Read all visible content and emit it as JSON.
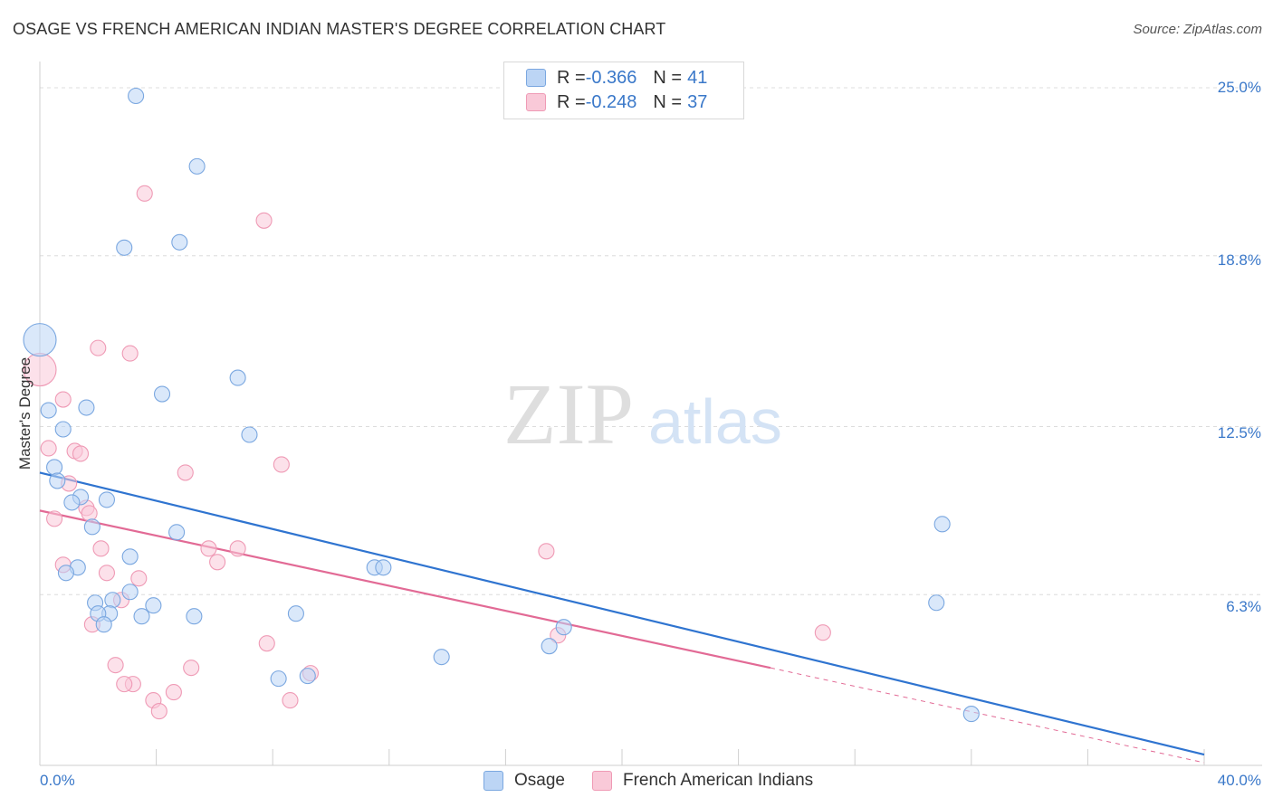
{
  "title": "OSAGE VS FRENCH AMERICAN INDIAN MASTER'S DEGREE CORRELATION CHART",
  "source": "Source: ZipAtlas.com",
  "watermark": {
    "zip": "ZIP",
    "atlas": "atlas"
  },
  "legend": {
    "osage": {
      "r_label": "R = ",
      "r_value": "-0.366",
      "n_label": "N = ",
      "n_value": "41"
    },
    "french": {
      "r_label": "R = ",
      "r_value": "-0.248",
      "n_label": "N = ",
      "n_value": "37"
    }
  },
  "chart_data": {
    "type": "scatter",
    "ylabel": "Master's Degree",
    "xlim": [
      0,
      40
    ],
    "ylim": [
      0,
      25
    ],
    "x_tick_labels": {
      "min": "0.0%",
      "max": "40.0%"
    },
    "y_tick_labels": [
      "25.0%",
      "18.8%",
      "12.5%",
      "6.3%"
    ],
    "y_tick_values": [
      25.0,
      18.8,
      12.5,
      6.3
    ],
    "colors": {
      "osage_fill": "#bcd5f5",
      "osage_stroke": "#7aa7e0",
      "osage_line": "#2f74d0",
      "french_fill": "#f9c9d8",
      "french_stroke": "#ef9ab5",
      "french_line": "#e26a95"
    },
    "series": [
      {
        "name": "Osage",
        "trend": {
          "x0": 0,
          "y0": 10.8,
          "x1": 40,
          "y1": 0.4
        },
        "points": [
          [
            3.3,
            24.7
          ],
          [
            5.4,
            22.1
          ],
          [
            2.9,
            19.1
          ],
          [
            4.8,
            19.3
          ],
          [
            0.0,
            15.7
          ],
          [
            6.8,
            14.3
          ],
          [
            4.2,
            13.7
          ],
          [
            0.3,
            13.1
          ],
          [
            1.6,
            13.2
          ],
          [
            0.8,
            12.4
          ],
          [
            7.2,
            12.2
          ],
          [
            0.5,
            11.0
          ],
          [
            0.6,
            10.5
          ],
          [
            2.3,
            9.8
          ],
          [
            1.4,
            9.9
          ],
          [
            1.1,
            9.7
          ],
          [
            1.8,
            8.8
          ],
          [
            4.7,
            8.6
          ],
          [
            31.0,
            8.9
          ],
          [
            3.1,
            7.7
          ],
          [
            1.3,
            7.3
          ],
          [
            0.9,
            7.1
          ],
          [
            11.5,
            7.3
          ],
          [
            11.8,
            7.3
          ],
          [
            3.1,
            6.4
          ],
          [
            2.5,
            6.1
          ],
          [
            1.9,
            6.0
          ],
          [
            3.9,
            5.9
          ],
          [
            2.4,
            5.6
          ],
          [
            2.0,
            5.6
          ],
          [
            3.5,
            5.5
          ],
          [
            5.3,
            5.5
          ],
          [
            8.8,
            5.6
          ],
          [
            2.2,
            5.2
          ],
          [
            30.8,
            6.0
          ],
          [
            18.0,
            5.1
          ],
          [
            17.5,
            4.4
          ],
          [
            13.8,
            4.0
          ],
          [
            9.2,
            3.3
          ],
          [
            8.2,
            3.2
          ],
          [
            32.0,
            1.9
          ]
        ]
      },
      {
        "name": "French American Indians",
        "trend": {
          "x0": 0,
          "y0": 9.4,
          "x1": 25.1,
          "y1": 3.6,
          "dash_to_x": 40,
          "dash_to_y": 0.1
        },
        "points": [
          [
            3.6,
            21.1
          ],
          [
            7.7,
            20.1
          ],
          [
            2.0,
            15.4
          ],
          [
            3.1,
            15.2
          ],
          [
            0.0,
            14.6
          ],
          [
            0.8,
            13.5
          ],
          [
            0.3,
            11.7
          ],
          [
            1.2,
            11.6
          ],
          [
            1.4,
            11.5
          ],
          [
            5.0,
            10.8
          ],
          [
            8.3,
            11.1
          ],
          [
            1.0,
            10.4
          ],
          [
            1.6,
            9.5
          ],
          [
            1.7,
            9.3
          ],
          [
            0.5,
            9.1
          ],
          [
            2.1,
            8.0
          ],
          [
            5.8,
            8.0
          ],
          [
            6.8,
            8.0
          ],
          [
            17.4,
            7.9
          ],
          [
            6.1,
            7.5
          ],
          [
            0.8,
            7.4
          ],
          [
            2.3,
            7.1
          ],
          [
            3.4,
            6.9
          ],
          [
            2.8,
            6.1
          ],
          [
            1.8,
            5.2
          ],
          [
            26.9,
            4.9
          ],
          [
            17.8,
            4.8
          ],
          [
            7.8,
            4.5
          ],
          [
            2.6,
            3.7
          ],
          [
            5.2,
            3.6
          ],
          [
            3.2,
            3.0
          ],
          [
            2.9,
            3.0
          ],
          [
            9.3,
            3.4
          ],
          [
            4.6,
            2.7
          ],
          [
            3.9,
            2.4
          ],
          [
            8.6,
            2.4
          ],
          [
            4.1,
            2.0
          ]
        ]
      }
    ]
  }
}
